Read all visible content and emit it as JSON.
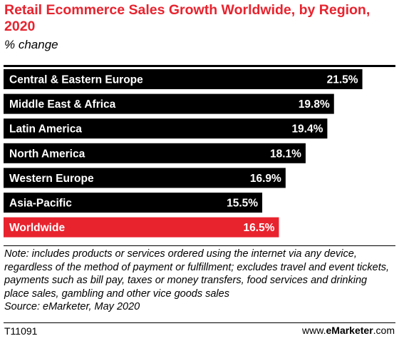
{
  "chart_data": {
    "type": "bar",
    "orientation": "horizontal",
    "title": "Retail Ecommerce Sales Growth Worldwide, by Region, 2020",
    "subtitle": "% change",
    "categories": [
      "Central & Eastern Europe",
      "Middle East & Africa",
      "Latin America",
      "North America",
      "Western Europe",
      "Asia-Pacific",
      "Worldwide"
    ],
    "values": [
      21.5,
      19.8,
      19.4,
      18.1,
      16.9,
      15.5,
      16.5
    ],
    "value_labels": [
      "21.5%",
      "19.8%",
      "19.4%",
      "18.1%",
      "16.9%",
      "15.5%",
      "16.5%"
    ],
    "colors": [
      "#000000",
      "#000000",
      "#000000",
      "#000000",
      "#000000",
      "#000000",
      "#e8232e"
    ],
    "xlim": [
      0,
      22.5
    ],
    "grid": false,
    "legend": "none"
  },
  "note": "Note: includes products or services ordered using the internet via any device, regardless of the method of payment or fulfillment; excludes travel and event tickets, payments such as bill pay, taxes or money transfers, food services and drinking place sales, gambling and other vice goods sales",
  "source": "Source: eMarketer, May 2020",
  "footer": {
    "chart_id": "T11091",
    "brand_prefix": "www.",
    "brand_name": "eMarketer",
    "brand_suffix": ".com"
  }
}
